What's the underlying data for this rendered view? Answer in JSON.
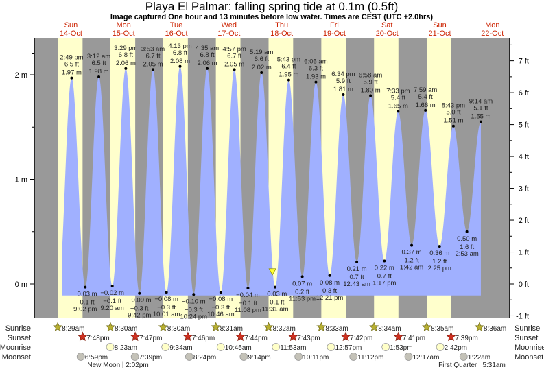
{
  "title": "Playa El Palmar: falling  spring tide at 0.1m (0.5ft)",
  "subtitle": "Image captured One hour and 13 minutes before low water. Times are CEST (UTC +2.0hrs)",
  "chart_data": {
    "type": "area",
    "title": "Playa El Palmar: falling  spring tide at 0.1m (0.5ft)",
    "days": [
      {
        "dow": "Sun",
        "date": "14-Oct"
      },
      {
        "dow": "Mon",
        "date": "15-Oct"
      },
      {
        "dow": "Tue",
        "date": "16-Oct"
      },
      {
        "dow": "Wed",
        "date": "17-Oct"
      },
      {
        "dow": "Thu",
        "date": "18-Oct"
      },
      {
        "dow": "Fri",
        "date": "19-Oct"
      },
      {
        "dow": "Sat",
        "date": "20-Oct"
      },
      {
        "dow": "Sun",
        "date": "21-Oct"
      },
      {
        "dow": "Mon",
        "date": "22-Oct"
      }
    ],
    "y_left": {
      "unit": "m",
      "ticks": [
        "0 m",
        "1 m",
        "2 m"
      ],
      "values": [
        0,
        1,
        2
      ]
    },
    "y_right": {
      "unit": "ft",
      "ticks": [
        "-1 ft",
        "0 ft",
        "1 ft",
        "2 ft",
        "3 ft",
        "4 ft",
        "5 ft",
        "6 ft",
        "7 ft"
      ],
      "values": [
        -1,
        0,
        1,
        2,
        3,
        4,
        5,
        6,
        7
      ]
    },
    "ylim_m": [
      -0.3,
      2.35
    ],
    "current": {
      "day": 18,
      "time": "10:18am",
      "level_m": 0.1,
      "level_ft": 0.5,
      "state": "falling"
    },
    "extremes": [
      {
        "day": 14,
        "time": "2:49 pm",
        "m": "1.97 m",
        "ft": "6.5 ft",
        "type": "high",
        "v": 1.97
      },
      {
        "day": 14,
        "time": "9:02 pm",
        "m": "−0.03 m",
        "ft": "−0.1 ft",
        "type": "low",
        "v": -0.03
      },
      {
        "day": 15,
        "time": "3:12 am",
        "m": "1.98 m",
        "ft": "6.5 ft",
        "type": "high",
        "v": 1.98
      },
      {
        "day": 15,
        "time": "9:20 am",
        "m": "−0.02 m",
        "ft": "−0.1 ft",
        "type": "low",
        "v": -0.02
      },
      {
        "day": 15,
        "time": "3:29 pm",
        "m": "2.06 m",
        "ft": "6.8 ft",
        "type": "high",
        "v": 2.06
      },
      {
        "day": 15,
        "time": "9:42 pm",
        "m": "−0.09 m",
        "ft": "−0.3 ft",
        "type": "low",
        "v": -0.09
      },
      {
        "day": 16,
        "time": "3:53 am",
        "m": "2.05 m",
        "ft": "6.7 ft",
        "type": "high",
        "v": 2.05
      },
      {
        "day": 16,
        "time": "10:01 am",
        "m": "−0.08 m",
        "ft": "−0.3 ft",
        "type": "low",
        "v": -0.08
      },
      {
        "day": 16,
        "time": "4:13 pm",
        "m": "2.08 m",
        "ft": "6.8 ft",
        "type": "high",
        "v": 2.08
      },
      {
        "day": 16,
        "time": "10:24 pm",
        "m": "−0.10 m",
        "ft": "−0.3 ft",
        "type": "low",
        "v": -0.1
      },
      {
        "day": 17,
        "time": "4:35 am",
        "m": "2.06 m",
        "ft": "6.8 ft",
        "type": "high",
        "v": 2.06
      },
      {
        "day": 17,
        "time": "10:46 am",
        "m": "−0.08 m",
        "ft": "−0.3 ft",
        "type": "low",
        "v": -0.08
      },
      {
        "day": 17,
        "time": "4:57 pm",
        "m": "2.05 m",
        "ft": "6.7 ft",
        "type": "high",
        "v": 2.05
      },
      {
        "day": 17,
        "time": "11:08 pm",
        "m": "−0.04 m",
        "ft": "−0.1 ft",
        "type": "low",
        "v": -0.04
      },
      {
        "day": 18,
        "time": "5:19 am",
        "m": "2.02 m",
        "ft": "6.6 ft",
        "type": "high",
        "v": 2.02
      },
      {
        "day": 18,
        "time": "11:31 am",
        "m": "−0.03 m",
        "ft": "−0.1 ft",
        "type": "low",
        "v": -0.03
      },
      {
        "day": 18,
        "time": "5:43 pm",
        "m": "1.95 m",
        "ft": "6.4 ft",
        "type": "high",
        "v": 1.95
      },
      {
        "day": 18,
        "time": "11:53 pm",
        "m": "0.07 m",
        "ft": "0.2 ft",
        "type": "low",
        "v": 0.07
      },
      {
        "day": 19,
        "time": "6:05 am",
        "m": "1.93 m",
        "ft": "6.3 ft",
        "type": "high",
        "v": 1.93
      },
      {
        "day": 19,
        "time": "12:21 pm",
        "m": "0.08 m",
        "ft": "0.3 ft",
        "type": "low",
        "v": 0.08
      },
      {
        "day": 19,
        "time": "6:34 pm",
        "m": "1.81 m",
        "ft": "5.9 ft",
        "type": "high",
        "v": 1.81
      },
      {
        "day": 20,
        "time": "12:43 am",
        "m": "0.21 m",
        "ft": "0.7 ft",
        "type": "low",
        "v": 0.21
      },
      {
        "day": 20,
        "time": "6:58 am",
        "m": "1.80 m",
        "ft": "5.9 ft",
        "type": "high",
        "v": 1.8
      },
      {
        "day": 20,
        "time": "1:17 pm",
        "m": "0.22 m",
        "ft": "0.7 ft",
        "type": "low",
        "v": 0.22
      },
      {
        "day": 20,
        "time": "7:33 pm",
        "m": "1.65 m",
        "ft": "5.4 ft",
        "type": "high",
        "v": 1.65
      },
      {
        "day": 21,
        "time": "1:42 am",
        "m": "0.37 m",
        "ft": "1.2 ft",
        "type": "low",
        "v": 0.37
      },
      {
        "day": 21,
        "time": "7:59 am",
        "m": "1.66 m",
        "ft": "5.4 ft",
        "type": "high",
        "v": 1.66
      },
      {
        "day": 21,
        "time": "2:25 pm",
        "m": "0.36 m",
        "ft": "1.2 ft",
        "type": "low",
        "v": 0.36
      },
      {
        "day": 21,
        "time": "8:43 pm",
        "m": "1.51 m",
        "ft": "5.0 ft",
        "type": "high",
        "v": 1.51
      },
      {
        "day": 22,
        "time": "2:53 am",
        "m": "0.50 m",
        "ft": "1.6 ft",
        "type": "low",
        "v": 0.5
      },
      {
        "day": 22,
        "time": "9:14 am",
        "m": "1.55 m",
        "ft": "5.1 ft",
        "type": "high",
        "v": 1.55
      }
    ],
    "rows": {
      "sunrise": {
        "label": "Sunrise",
        "events": [
          {
            "day": 14,
            "time": "8:29am"
          },
          {
            "day": 15,
            "time": "8:30am"
          },
          {
            "day": 16,
            "time": "8:30am"
          },
          {
            "day": 17,
            "time": "8:31am"
          },
          {
            "day": 18,
            "time": "8:32am"
          },
          {
            "day": 19,
            "time": "8:33am"
          },
          {
            "day": 20,
            "time": "8:34am"
          },
          {
            "day": 21,
            "time": "8:35am"
          },
          {
            "day": 22,
            "time": "8:36am"
          }
        ]
      },
      "sunset": {
        "label": "Sunset",
        "events": [
          {
            "day": 14,
            "time": "7:48pm"
          },
          {
            "day": 15,
            "time": "7:47pm"
          },
          {
            "day": 16,
            "time": "7:46pm"
          },
          {
            "day": 17,
            "time": "7:44pm"
          },
          {
            "day": 18,
            "time": "7:43pm"
          },
          {
            "day": 19,
            "time": "7:42pm"
          },
          {
            "day": 20,
            "time": "7:41pm"
          },
          {
            "day": 21,
            "time": "7:39pm"
          }
        ]
      },
      "moonrise": {
        "label": "Moonrise",
        "events": [
          {
            "day": 15,
            "time": "8:23am"
          },
          {
            "day": 16,
            "time": "9:34am"
          },
          {
            "day": 17,
            "time": "10:45am"
          },
          {
            "day": 18,
            "time": "11:53am"
          },
          {
            "day": 19,
            "time": "12:57pm"
          },
          {
            "day": 20,
            "time": "1:53pm"
          },
          {
            "day": 21,
            "time": "2:42pm"
          }
        ]
      },
      "moonset": {
        "label": "Moonset",
        "events": [
          {
            "day": 14,
            "time": "6:59pm"
          },
          {
            "day": 15,
            "time": "7:39pm"
          },
          {
            "day": 16,
            "time": "8:24pm"
          },
          {
            "day": 17,
            "time": "9:14pm"
          },
          {
            "day": 18,
            "time": "10:11pm"
          },
          {
            "day": 19,
            "time": "11:12pm"
          },
          {
            "day": 21,
            "time": "12:17am"
          },
          {
            "day": 22,
            "time": "1:22am"
          }
        ]
      }
    },
    "moon_phases": [
      {
        "text": "New Moon | 2:02pm"
      },
      {
        "text": "First Quarter | 5:31am"
      }
    ],
    "colors": {
      "night": "#999999",
      "day": "#ffffcc",
      "water": "#a0b0ff",
      "sunrise": "#b8b030",
      "sunset": "#d03020",
      "moonrise": "#ffffc8",
      "moonset": "#c4c2b8",
      "daylabel": "#cc2200",
      "current_marker": "#ffff33"
    }
  }
}
